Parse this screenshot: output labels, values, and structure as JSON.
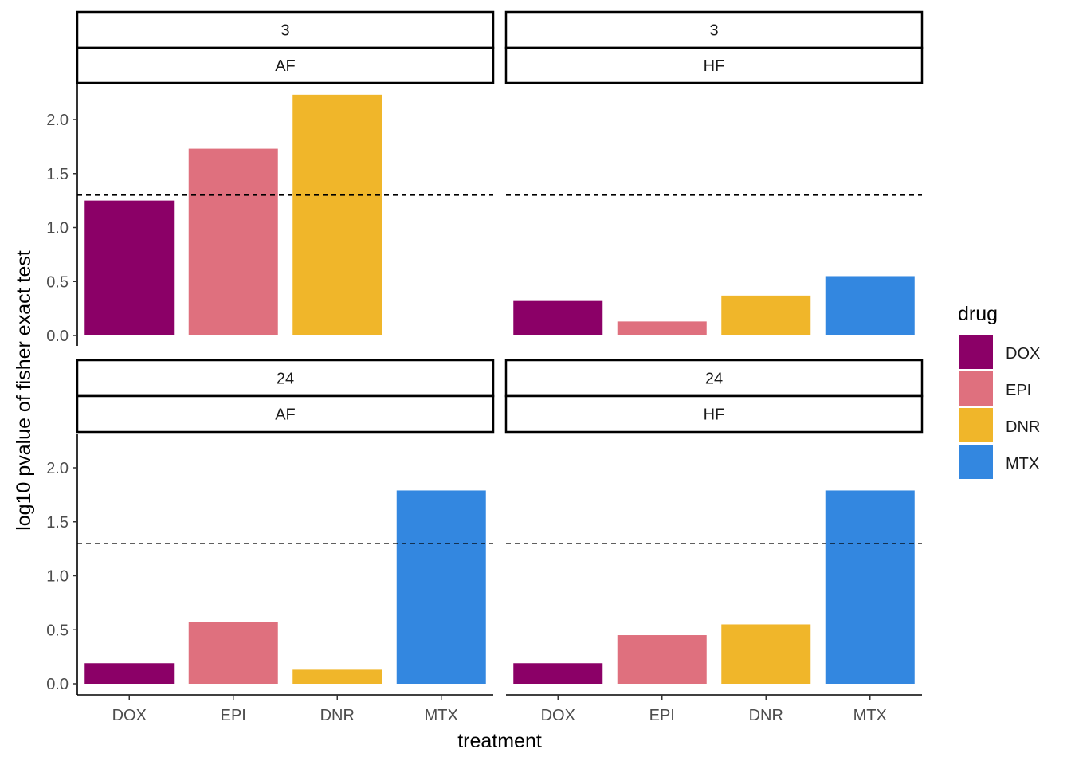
{
  "chart_data": {
    "type": "bar",
    "title": "",
    "xlabel": "treatment",
    "ylabel": "log10 pvalue of fisher exact test",
    "categories": [
      "DOX",
      "EPI",
      "DNR",
      "MTX"
    ],
    "ylim": [
      0,
      2.3
    ],
    "yticks": [
      "0.0",
      "0.5",
      "1.0",
      "1.5",
      "2.0"
    ],
    "reference_line": {
      "y": 1.3,
      "style": "dashed"
    },
    "legend": {
      "title": "drug",
      "position": "right",
      "items": [
        {
          "label": "DOX",
          "color": "#8B0067"
        },
        {
          "label": "EPI",
          "color": "#DF707E"
        },
        {
          "label": "DNR",
          "color": "#F0B62A"
        },
        {
          "label": "MTX",
          "color": "#3387E0"
        }
      ]
    },
    "panels": [
      {
        "strip_top": "3",
        "strip_bottom": "AF",
        "row": 0,
        "col": 0,
        "values": [
          1.25,
          1.73,
          2.23,
          null
        ]
      },
      {
        "strip_top": "3",
        "strip_bottom": "HF",
        "row": 0,
        "col": 1,
        "values": [
          0.32,
          0.13,
          0.37,
          0.55
        ]
      },
      {
        "strip_top": "24",
        "strip_bottom": "AF",
        "row": 1,
        "col": 0,
        "values": [
          0.19,
          0.57,
          0.13,
          1.79
        ]
      },
      {
        "strip_top": "24",
        "strip_bottom": "HF",
        "row": 1,
        "col": 1,
        "values": [
          0.19,
          0.45,
          0.55,
          1.79
        ]
      }
    ]
  }
}
